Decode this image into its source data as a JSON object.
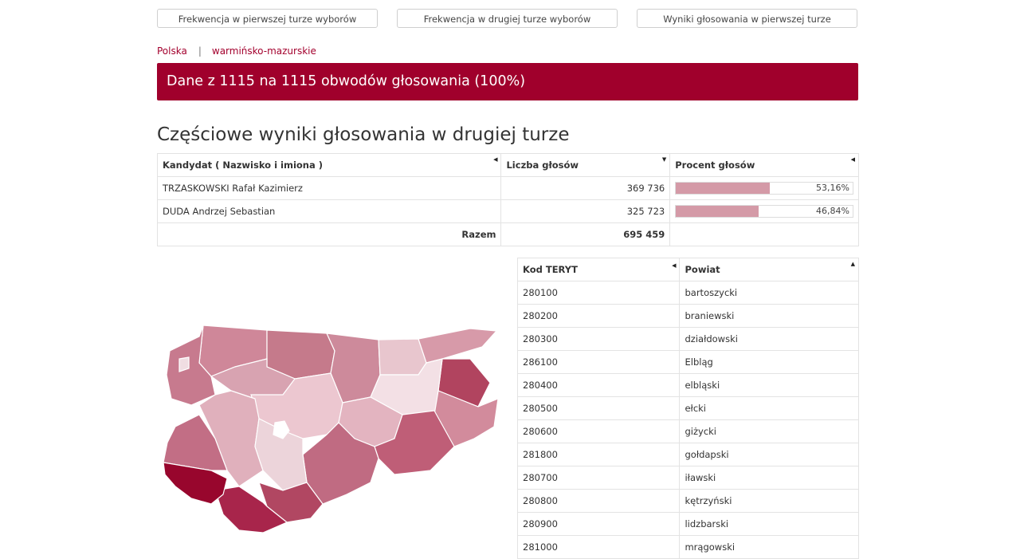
{
  "nav": {
    "btn1": "Frekwencja w pierwszej turze wyborów",
    "btn2": "Frekwencja w drugiej turze wyborów",
    "btn3": "Wyniki głosowania w pierwszej turze"
  },
  "breadcrumb": {
    "level1": "Polska",
    "separator": "|",
    "level2": "warmińsko-mazurskie"
  },
  "banner": "Dane z 1115 na 1115 obwodów głosowania (100%)",
  "section_title": "Częściowe wyniki głosowania w drugiej turze",
  "results": {
    "headers": {
      "candidate": "Kandydat ( Nazwisko i imiona )",
      "votes": "Liczba głosów",
      "percent": "Procent głosów"
    },
    "rows": [
      {
        "name": "TRZASKOWSKI Rafał Kazimierz",
        "votes": "369 736",
        "percent_label": "53,16%",
        "percent": 53.16
      },
      {
        "name": "DUDA Andrzej Sebastian",
        "votes": "325 723",
        "percent_label": "46,84%",
        "percent": 46.84
      }
    ],
    "total_label": "Razem",
    "total_votes": "695 459"
  },
  "teryt_table": {
    "headers": {
      "code": "Kod TERYT",
      "county": "Powiat"
    },
    "rows": [
      {
        "code": "280100",
        "county": "bartoszycki"
      },
      {
        "code": "280200",
        "county": "braniewski"
      },
      {
        "code": "280300",
        "county": "działdowski"
      },
      {
        "code": "286100",
        "county": "Elbląg"
      },
      {
        "code": "280400",
        "county": "elbląski"
      },
      {
        "code": "280500",
        "county": "ełcki"
      },
      {
        "code": "280600",
        "county": "giżycki"
      },
      {
        "code": "281800",
        "county": "gołdapski"
      },
      {
        "code": "280700",
        "county": "iławski"
      },
      {
        "code": "280800",
        "county": "kętrzyński"
      },
      {
        "code": "280900",
        "county": "lidzbarski"
      },
      {
        "code": "281000",
        "county": "mrągowski"
      }
    ]
  },
  "colors": {
    "accent": "#a0002c",
    "bar": "#d49aa7"
  }
}
